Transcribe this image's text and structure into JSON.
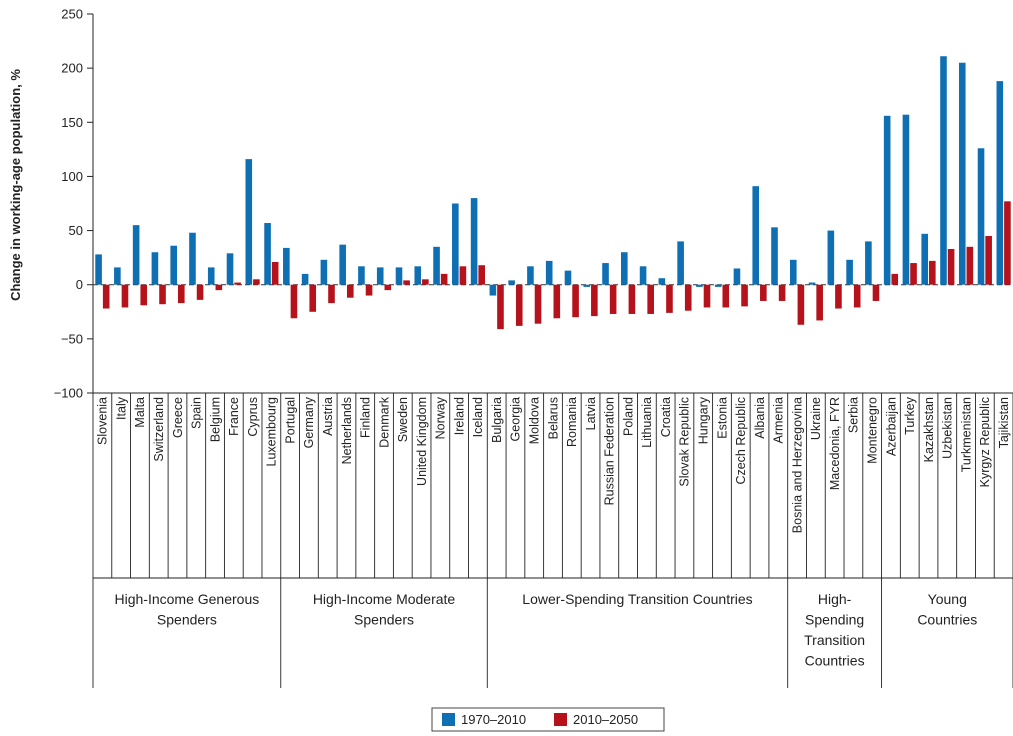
{
  "chart_data": {
    "type": "bar",
    "ylabel": "Change in working-age population, %",
    "xlabel": "",
    "ylim": [
      -100,
      250
    ],
    "yticks": [
      -100,
      -50,
      0,
      50,
      100,
      150,
      200,
      250
    ],
    "ytick_labels": [
      "−100",
      "−50",
      "0",
      "50",
      "100",
      "150",
      "200",
      "250"
    ],
    "legend_position": "bottom-center",
    "categories": [
      "Slovenia",
      "Italy",
      "Malta",
      "Switzerland",
      "Greece",
      "Spain",
      "Belgium",
      "France",
      "Cyprus",
      "Luxembourg",
      "Portugal",
      "Germany",
      "Austria",
      "Netherlands",
      "Finland",
      "Denmark",
      "Sweden",
      "United Kingdom",
      "Norway",
      "Ireland",
      "Iceland",
      "Bulgaria",
      "Georgia",
      "Moldova",
      "Belarus",
      "Romania",
      "Latvia",
      "Russian Federation",
      "Poland",
      "Lithuania",
      "Croatia",
      "Slovak Republic",
      "Hungary",
      "Estonia",
      "Czech Republic",
      "Albania",
      "Armenia",
      "Bosnia and Herzegovina",
      "Ukraine",
      "Macedonia, FYR",
      "Serbia",
      "Montenegro",
      "Azerbaijan",
      "Turkey",
      "Kazakhstan",
      "Uzbekistan",
      "Turkmenistan",
      "Kyrgyz Republic",
      "Tajikistan"
    ],
    "series": [
      {
        "name": "1970–2010",
        "color": "#0f6fb3",
        "values": [
          28,
          16,
          55,
          30,
          36,
          48,
          16,
          29,
          116,
          57,
          34,
          10,
          23,
          37,
          17,
          16,
          16,
          17,
          35,
          75,
          80,
          -10,
          4,
          17,
          22,
          13,
          -2,
          20,
          30,
          17,
          6,
          40,
          -2,
          -2,
          15,
          91,
          53,
          23,
          2,
          50,
          23,
          40,
          156,
          157,
          47,
          211,
          205,
          126,
          188
        ]
      },
      {
        "name": "2010–2050",
        "color": "#b5121b",
        "values": [
          -22,
          -21,
          -19,
          -18,
          -17,
          -14,
          -5,
          2,
          5,
          21,
          -31,
          -25,
          -17,
          -12,
          -10,
          -5,
          4,
          5,
          10,
          17,
          18,
          -41,
          -38,
          -36,
          -31,
          -30,
          -29,
          -27,
          -27,
          -27,
          -26,
          -24,
          -21,
          -21,
          -20,
          -15,
          -15,
          -37,
          -33,
          -22,
          -21,
          -15,
          10,
          20,
          22,
          33,
          35,
          45,
          77
        ]
      }
    ],
    "groups": [
      {
        "label_lines": [
          "High-Income Generous",
          "Spenders"
        ],
        "start": 0,
        "end": 9
      },
      {
        "label_lines": [
          "High-Income Moderate",
          "Spenders"
        ],
        "start": 10,
        "end": 20
      },
      {
        "label_lines": [
          "Lower-Spending Transition Countries"
        ],
        "start": 21,
        "end": 36
      },
      {
        "label_lines": [
          "High-",
          "Spending",
          "Transition",
          "Countries"
        ],
        "start": 37,
        "end": 41
      },
      {
        "label_lines": [
          "Young",
          "Countries"
        ],
        "start": 42,
        "end": 48
      }
    ]
  }
}
